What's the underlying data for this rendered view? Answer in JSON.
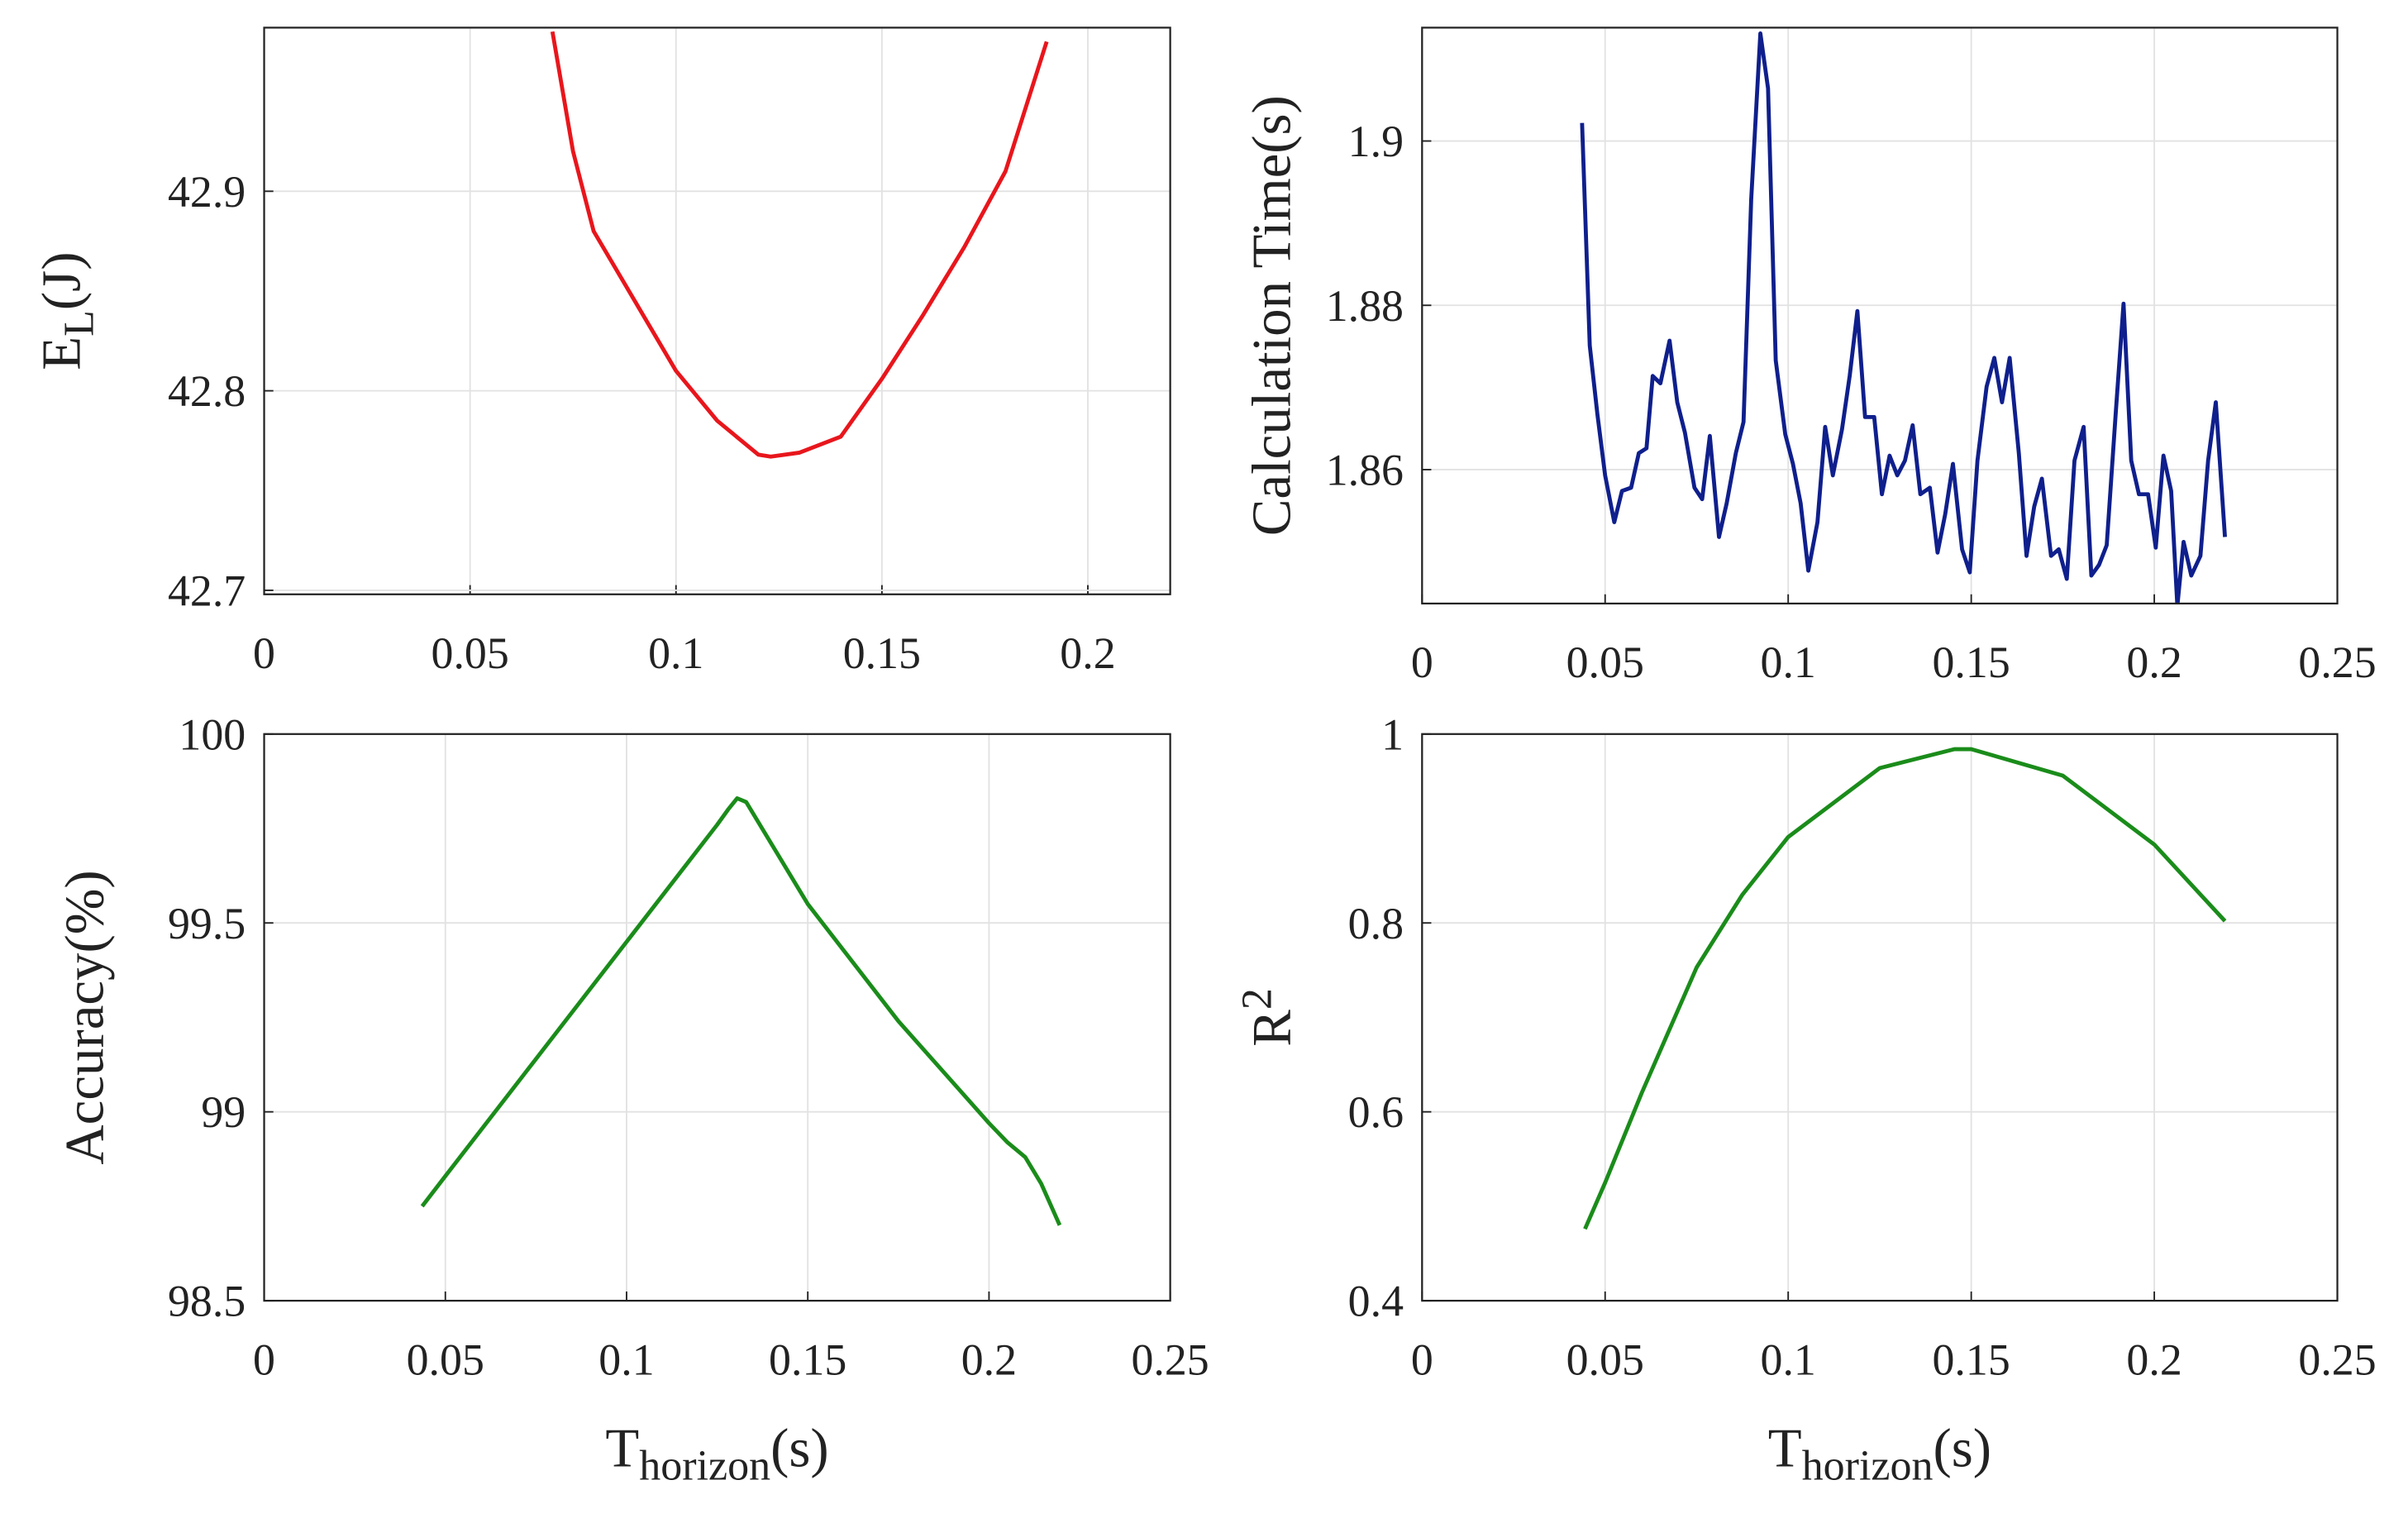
{
  "chart_data": [
    {
      "type": "line",
      "ylabel": {
        "base": "E",
        "sub": "L",
        "tail": "(J)"
      },
      "x": [
        0.07,
        0.075,
        0.08,
        0.09,
        0.1,
        0.11,
        0.12,
        0.123,
        0.13,
        0.14,
        0.15,
        0.16,
        0.17,
        0.18,
        0.19
      ],
      "values": [
        42.98,
        42.92,
        42.88,
        42.845,
        42.81,
        42.785,
        42.768,
        42.767,
        42.769,
        42.777,
        42.806,
        42.838,
        42.872,
        42.91,
        42.975
      ],
      "color": "#e8161c",
      "xlim": [
        0,
        0.22
      ],
      "xticks": [
        0,
        0.05,
        0.1,
        0.15,
        0.2
      ],
      "ylim": [
        42.698,
        42.982
      ],
      "yticks": [
        42.7,
        42.8,
        42.9
      ],
      "grid": true
    },
    {
      "type": "line",
      "ylabel": "Calculation Time(s)",
      "x": [
        0.0437,
        0.0458,
        0.0479,
        0.05,
        0.0525,
        0.0546,
        0.0571,
        0.0592,
        0.0613,
        0.063,
        0.0651,
        0.0676,
        0.0697,
        0.0718,
        0.0744,
        0.0765,
        0.0786,
        0.0811,
        0.0832,
        0.0857,
        0.0878,
        0.0899,
        0.0924,
        0.0945,
        0.0966,
        0.0992,
        0.1013,
        0.1034,
        0.1055,
        0.108,
        0.1101,
        0.1122,
        0.1147,
        0.1168,
        0.1189,
        0.121,
        0.1235,
        0.1256,
        0.1277,
        0.1298,
        0.1319,
        0.134,
        0.1361,
        0.1387,
        0.1408,
        0.1429,
        0.145,
        0.1475,
        0.1496,
        0.1517,
        0.1542,
        0.1563,
        0.1584,
        0.1605,
        0.163,
        0.1651,
        0.1672,
        0.1693,
        0.1718,
        0.1739,
        0.1761,
        0.1782,
        0.1807,
        0.1828,
        0.1849,
        0.187,
        0.1895,
        0.1916,
        0.1937,
        0.1958,
        0.1983,
        0.2004,
        0.2025,
        0.2046,
        0.2063,
        0.208,
        0.2101,
        0.2126,
        0.2147,
        0.2168,
        0.2193
      ],
      "values": [
        1.9022,
        1.8751,
        1.8667,
        1.8593,
        1.8536,
        1.8574,
        1.8578,
        1.862,
        1.8626,
        1.8714,
        1.8705,
        1.8757,
        1.8682,
        1.8645,
        1.8578,
        1.8564,
        1.8641,
        1.8518,
        1.8559,
        1.862,
        1.8658,
        1.8929,
        1.9131,
        1.9064,
        1.8733,
        1.8643,
        1.8607,
        1.8559,
        1.8477,
        1.8536,
        1.8652,
        1.8593,
        1.8649,
        1.8714,
        1.8793,
        1.8664,
        1.8664,
        1.857,
        1.8617,
        1.8593,
        1.8611,
        1.8654,
        1.857,
        1.8578,
        1.8499,
        1.8546,
        1.8607,
        1.8503,
        1.8475,
        1.8611,
        1.8701,
        1.8736,
        1.8682,
        1.8736,
        1.862,
        1.8495,
        1.8555,
        1.8589,
        1.8495,
        1.8503,
        1.8467,
        1.8611,
        1.8652,
        1.8471,
        1.8484,
        1.8508,
        1.8671,
        1.8802,
        1.8611,
        1.857,
        1.857,
        1.8505,
        1.8617,
        1.8574,
        1.8434,
        1.8512,
        1.8471,
        1.8495,
        1.8611,
        1.8682,
        1.8518
      ],
      "color": "#0f1f8c",
      "xlim": [
        0,
        0.25
      ],
      "xticks": [
        0,
        0.05,
        0.1,
        0.15,
        0.2,
        0.25
      ],
      "ylim": [
        1.8437,
        1.9138
      ],
      "yticks": [
        1.86,
        1.88,
        1.9
      ],
      "grid": true
    },
    {
      "type": "line",
      "ylabel": "Accuracy(%)",
      "xlabel": {
        "base": "T",
        "sub": "horizon",
        "tail": "(s)"
      },
      "x": [
        0.0436,
        0.05,
        0.075,
        0.1,
        0.125,
        0.128,
        0.1305,
        0.133,
        0.15,
        0.175,
        0.2,
        0.205,
        0.21,
        0.2144,
        0.2195
      ],
      "values": [
        98.75,
        98.83,
        99.14,
        99.45,
        99.76,
        99.8,
        99.83,
        99.82,
        99.55,
        99.24,
        98.97,
        98.92,
        98.88,
        98.81,
        98.7
      ],
      "color": "#1a8c1a",
      "xlim": [
        0,
        0.25
      ],
      "xticks": [
        0,
        0.05,
        0.1,
        0.15,
        0.2,
        0.25
      ],
      "ylim": [
        98.5,
        100
      ],
      "yticks": [
        98.5,
        99,
        99.5,
        100
      ],
      "grid": true
    },
    {
      "type": "line",
      "ylabel": {
        "base": "R",
        "sup": "2"
      },
      "xlabel": {
        "base": "T",
        "sub": "horizon",
        "tail": "(s)"
      },
      "x": [
        0.0445,
        0.05,
        0.06,
        0.075,
        0.0875,
        0.1,
        0.125,
        0.1454,
        0.15,
        0.175,
        0.2,
        0.2193
      ],
      "values": [
        0.476,
        0.525,
        0.62,
        0.753,
        0.83,
        0.891,
        0.964,
        0.984,
        0.984,
        0.956,
        0.883,
        0.802
      ],
      "color": "#1a8c1a",
      "xlim": [
        0,
        0.25
      ],
      "xticks": [
        0,
        0.05,
        0.1,
        0.15,
        0.2,
        0.25
      ],
      "ylim": [
        0.4,
        1
      ],
      "yticks": [
        0.4,
        0.6,
        0.8,
        1
      ],
      "grid": true
    }
  ]
}
